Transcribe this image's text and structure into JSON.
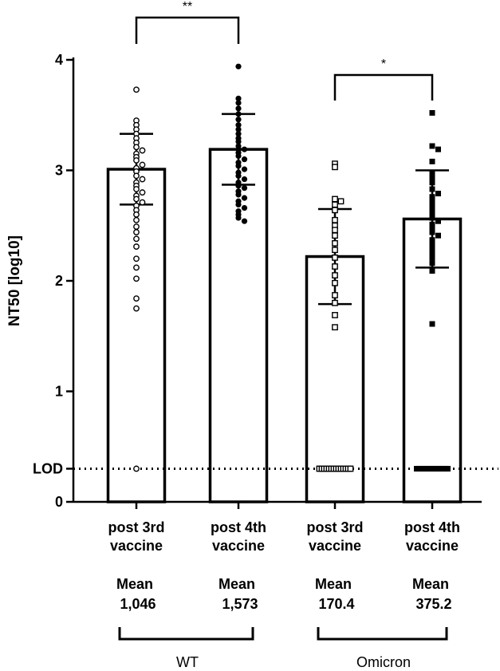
{
  "chart_data": {
    "type": "bar",
    "ylabel": "NT50 [log10]",
    "ylim": [
      0,
      4
    ],
    "yticks": [
      "0",
      "1",
      "2",
      "3",
      "4"
    ],
    "lod_label": "LOD",
    "lod_value": 0.3,
    "grid": false,
    "legend": "none",
    "categories": [
      {
        "line1": "post 3rd",
        "line2": "vaccine",
        "mean_label": "Mean",
        "mean_value": "1,046",
        "group": "WT",
        "marker": "open-circle"
      },
      {
        "line1": "post 4th",
        "line2": "vaccine",
        "mean_label": "Mean",
        "mean_value": "1,573",
        "group": "WT",
        "marker": "filled-circle"
      },
      {
        "line1": "post 3rd",
        "line2": "vaccine",
        "mean_label": "Mean",
        "mean_value": "170.4",
        "group": "Omicron",
        "marker": "open-square"
      },
      {
        "line1": "post 4th",
        "line2": "vaccine",
        "mean_label": "Mean",
        "mean_value": "375.2",
        "group": "Omicron",
        "marker": "filled-square"
      }
    ],
    "bar_values": [
      3.01,
      3.19,
      2.22,
      2.56
    ],
    "error_bars": [
      [
        2.69,
        3.33
      ],
      [
        2.87,
        3.51
      ],
      [
        1.79,
        2.65
      ],
      [
        2.12,
        3.0
      ]
    ],
    "points": [
      [
        3.73,
        3.45,
        3.41,
        3.37,
        3.33,
        3.29,
        3.25,
        3.21,
        3.18,
        3.15,
        3.12,
        3.09,
        3.05,
        3.02,
        2.99,
        2.95,
        2.92,
        2.89,
        2.86,
        2.83,
        2.8,
        2.77,
        2.74,
        2.71,
        2.68,
        2.64,
        2.6,
        2.55,
        2.49,
        2.44,
        2.38,
        2.31,
        2.2,
        2.12,
        2.02,
        1.84,
        1.75,
        0.3
      ],
      [
        3.94,
        3.65,
        3.61,
        3.56,
        3.51,
        3.46,
        3.41,
        3.37,
        3.33,
        3.29,
        3.26,
        3.22,
        3.19,
        3.16,
        3.13,
        3.1,
        3.07,
        3.04,
        3.01,
        2.98,
        2.95,
        2.92,
        2.89,
        2.86,
        2.84,
        2.81,
        2.78,
        2.75,
        2.72,
        2.69,
        2.66,
        2.63,
        2.6,
        2.57,
        2.54
      ],
      [
        3.06,
        3.03,
        2.74,
        2.72,
        2.69,
        2.64,
        2.55,
        2.5,
        2.46,
        2.41,
        2.34,
        2.28,
        2.21,
        2.13,
        2.05,
        1.98,
        1.87,
        1.8,
        1.69,
        1.58,
        0.3,
        0.3,
        0.3,
        0.3,
        0.3,
        0.3,
        0.3,
        0.3,
        0.3,
        0.3,
        0.3,
        0.3,
        0.3,
        0.3
      ],
      [
        3.52,
        3.22,
        3.19,
        3.08,
        2.97,
        2.93,
        2.89,
        2.83,
        2.79,
        2.76,
        2.72,
        2.68,
        2.64,
        2.61,
        2.57,
        2.54,
        2.51,
        2.47,
        2.44,
        2.41,
        2.37,
        2.33,
        2.29,
        2.25,
        2.21,
        2.16,
        2.09,
        1.61,
        0.3,
        0.3,
        0.3,
        0.3,
        0.3,
        0.3,
        0.3,
        0.3,
        0.3,
        0.3,
        0.3,
        0.3,
        0.3,
        0.3
      ]
    ],
    "significance": [
      {
        "from": 0,
        "to": 1,
        "label": "**"
      },
      {
        "from": 2,
        "to": 3,
        "label": "*"
      }
    ],
    "groups": [
      {
        "name": "WT",
        "from": 0,
        "to": 1
      },
      {
        "name": "Omicron",
        "from": 2,
        "to": 3
      }
    ]
  }
}
